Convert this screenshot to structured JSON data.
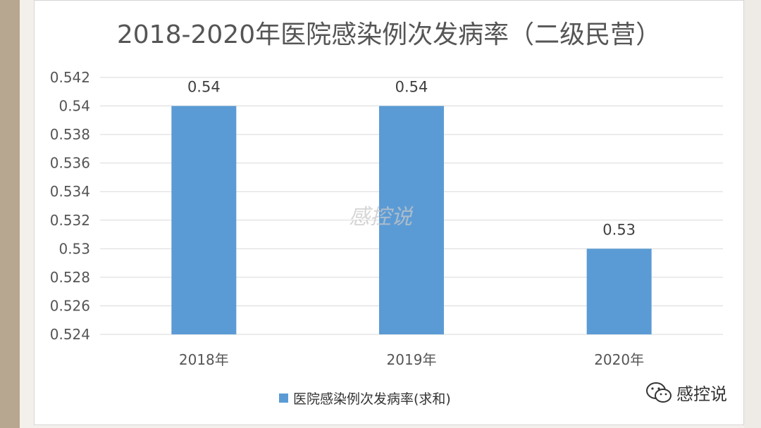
{
  "chart_data": {
    "type": "bar",
    "title": "2018-2020年医院感染例次发病率（二级民营）",
    "categories": [
      "2018年",
      "2019年",
      "2020年"
    ],
    "series": [
      {
        "name": "医院感染例次发病率(求和)",
        "values": [
          0.54,
          0.54,
          0.53
        ],
        "color": "#5b9bd5"
      }
    ],
    "data_labels": [
      "0.54",
      "0.54",
      "0.53"
    ],
    "ylim": [
      0.524,
      0.542
    ],
    "yticks": [
      "0.524",
      "0.526",
      "0.528",
      "0.53",
      "0.532",
      "0.534",
      "0.536",
      "0.538",
      "0.54",
      "0.542"
    ],
    "grid": true,
    "legend_position": "bottom",
    "watermark": "感控说"
  },
  "footer": {
    "account_name": "感控说",
    "icon": "wechat-icon"
  }
}
